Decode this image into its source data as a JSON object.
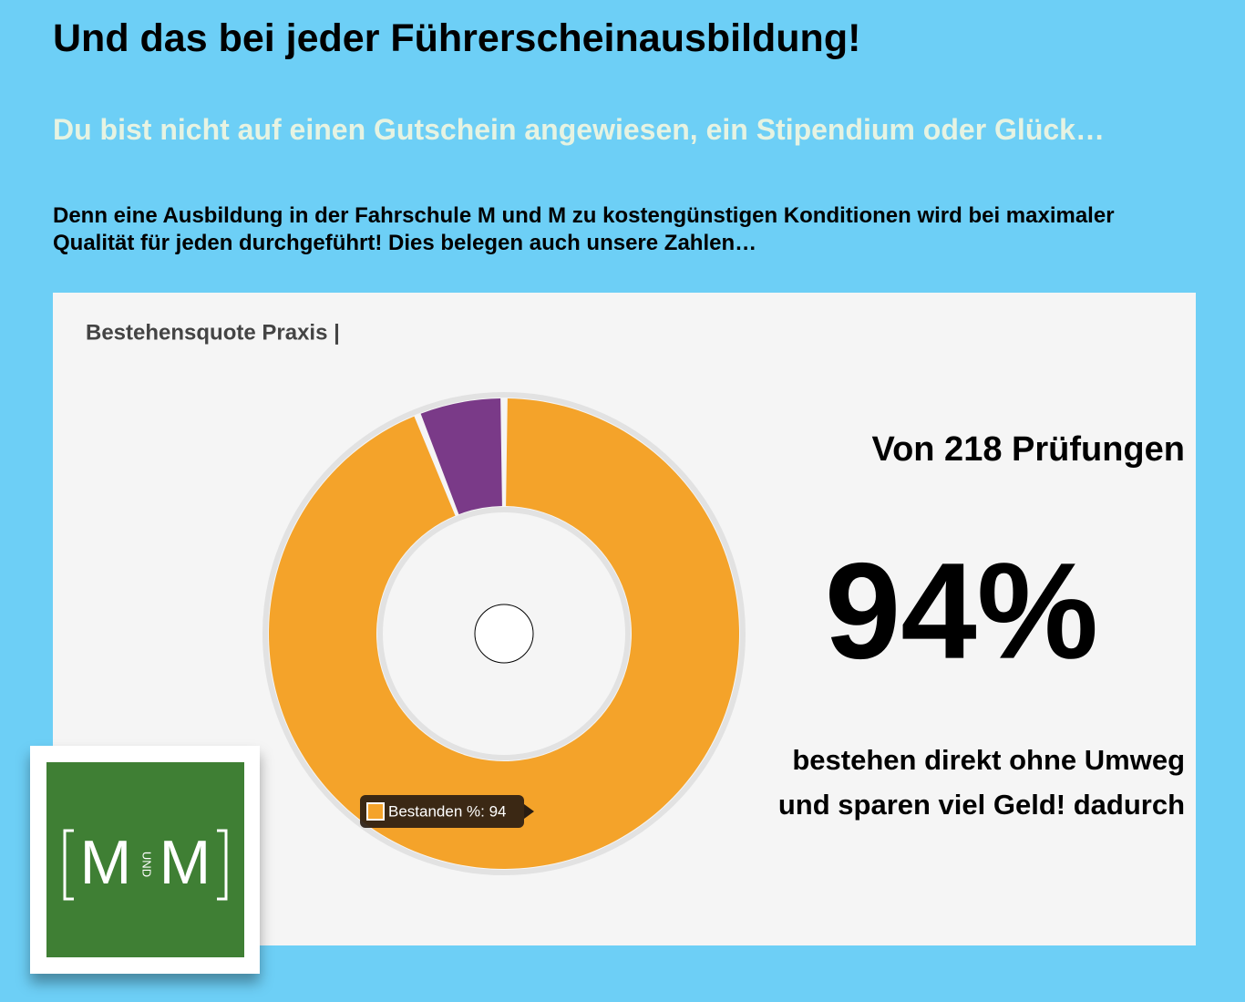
{
  "heading": "Und das bei jeder Führerscheinausbildung!",
  "subheading": "Du bist nicht auf einen Gutschein angewiesen, ein Stipendium oder Glück…",
  "intro": "Denn eine Ausbildung in der Fahrschule M und M zu kostengünstigen Konditionen wird bei maximaler Qualität für jeden durchgeführt! Dies belegen auch unsere Zahlen…",
  "chart_data": {
    "type": "pie",
    "title": "Bestehensquote Praxis |",
    "categories": [
      "Bestanden %",
      null
    ],
    "values": [
      94,
      6
    ],
    "colors": [
      "#f4a32a",
      "#7a3a88"
    ],
    "tooltip": "Bestanden %: 94"
  },
  "stats": {
    "line1": "Von 218 Prüfungen",
    "big": "94%",
    "line2": "bestehen direkt ohne Umweg",
    "line3": "und sparen viel Geld! dadurch"
  },
  "logo": {
    "left": "M",
    "middle": "UND",
    "right": "M"
  }
}
